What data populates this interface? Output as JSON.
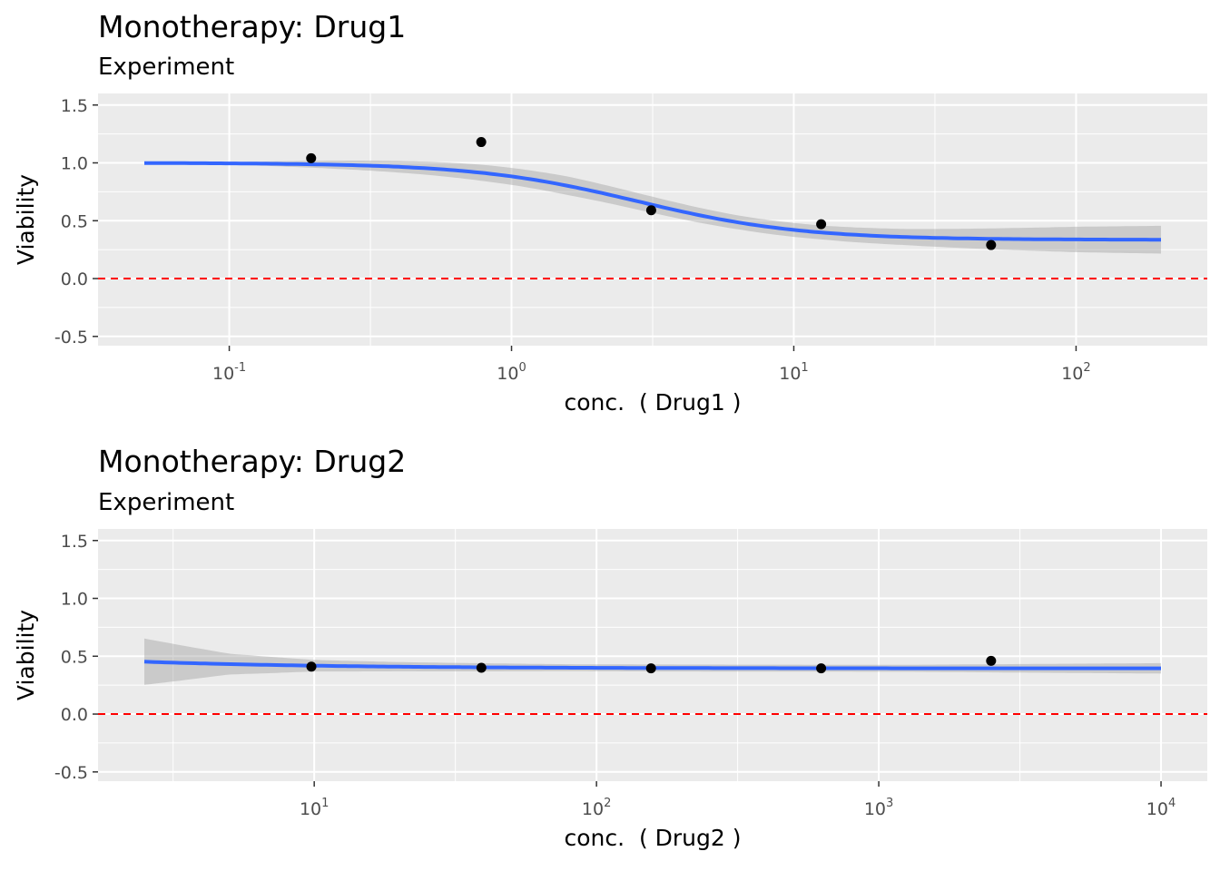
{
  "chart_data": [
    {
      "type": "line",
      "title": "Monotherapy: Drug1",
      "subtitle": "Experiment",
      "xlabel": "conc.  ( Drug1 )",
      "ylabel": "Viability",
      "x_scale": "log10",
      "xlim": [
        0.05,
        200
      ],
      "ylim": [
        -0.58,
        1.6
      ],
      "x_ticks": [
        {
          "value": 0.1,
          "base": "10",
          "exp": "-1"
        },
        {
          "value": 1,
          "base": "10",
          "exp": "0"
        },
        {
          "value": 10,
          "base": "10",
          "exp": "1"
        },
        {
          "value": 100,
          "base": "10",
          "exp": "2"
        }
      ],
      "y_ticks": [
        {
          "value": 1.5,
          "label": "1.5"
        },
        {
          "value": 1.0,
          "label": "1.0"
        },
        {
          "value": 0.5,
          "label": "0.5"
        },
        {
          "value": 0.0,
          "label": "0.0"
        },
        {
          "value": -0.5,
          "label": "-0.5"
        }
      ],
      "reference_line": {
        "y": 0,
        "color": "#ff0000",
        "style": "dashed"
      },
      "points": [
        {
          "x": 0.195,
          "y": 1.04
        },
        {
          "x": 0.781,
          "y": 1.18
        },
        {
          "x": 3.125,
          "y": 0.59
        },
        {
          "x": 12.5,
          "y": 0.47
        },
        {
          "x": 50,
          "y": 0.29
        }
      ],
      "fit": {
        "model": "4-parameter log-logistic",
        "top": 1.0,
        "bottom": 0.335,
        "ec50": 2.8,
        "hill": 1.5,
        "band_halfwidth": [
          0.0,
          0.01,
          0.03,
          0.05,
          0.07,
          0.08,
          0.07,
          0.06,
          0.06,
          0.07,
          0.09,
          0.11,
          0.12
        ],
        "color": "#3366ff",
        "band_color": "#999999"
      }
    },
    {
      "type": "line",
      "title": "Monotherapy: Drug2",
      "subtitle": "Experiment",
      "xlabel": "conc.  ( Drug2 )",
      "ylabel": "Viability",
      "x_scale": "log10",
      "xlim": [
        2.5,
        10000
      ],
      "ylim": [
        -0.58,
        1.6
      ],
      "x_ticks": [
        {
          "value": 10,
          "base": "10",
          "exp": "1"
        },
        {
          "value": 100,
          "base": "10",
          "exp": "2"
        },
        {
          "value": 1000,
          "base": "10",
          "exp": "3"
        },
        {
          "value": 10000,
          "base": "10",
          "exp": "4"
        }
      ],
      "y_ticks": [
        {
          "value": 1.5,
          "label": "1.5"
        },
        {
          "value": 1.0,
          "label": "1.0"
        },
        {
          "value": 0.5,
          "label": "0.5"
        },
        {
          "value": 0.0,
          "label": "0.0"
        },
        {
          "value": -0.5,
          "label": "-0.5"
        }
      ],
      "reference_line": {
        "y": 0,
        "color": "#ff0000",
        "style": "dashed"
      },
      "points": [
        {
          "x": 9.77,
          "y": 0.41
        },
        {
          "x": 39.1,
          "y": 0.4
        },
        {
          "x": 156,
          "y": 0.395
        },
        {
          "x": 625,
          "y": 0.395
        },
        {
          "x": 2500,
          "y": 0.46
        }
      ],
      "fit": {
        "model": "4-parameter log-logistic",
        "top": 1.0,
        "bottom": 0.395,
        "ec50": 0.1,
        "hill": 0.7,
        "band_halfwidth": [
          0.2,
          0.09,
          0.05,
          0.04,
          0.035,
          0.03,
          0.03,
          0.03,
          0.03,
          0.03,
          0.035,
          0.04,
          0.045
        ],
        "color": "#3366ff",
        "band_color": "#999999"
      }
    }
  ]
}
